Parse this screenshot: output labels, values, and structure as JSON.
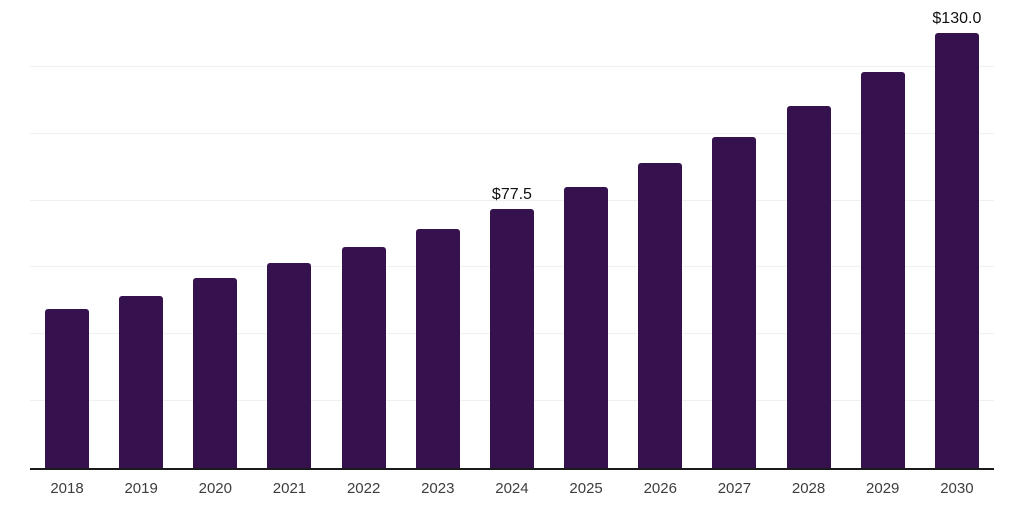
{
  "chart_data": {
    "type": "bar",
    "title": "",
    "xlabel": "",
    "ylabel": "",
    "categories": [
      "2018",
      "2019",
      "2020",
      "2021",
      "2022",
      "2023",
      "2024",
      "2025",
      "2026",
      "2027",
      "2028",
      "2029",
      "2030"
    ],
    "values": [
      47.7,
      51.4,
      56.7,
      61.3,
      66.2,
      71.4,
      77.5,
      84.0,
      91.1,
      99.1,
      108.3,
      118.6,
      130.0
    ],
    "bar_labels": [
      "",
      "",
      "",
      "",
      "",
      "",
      "$77.5",
      "",
      "",
      "",
      "",
      "",
      "$130.0"
    ],
    "ylim": [
      0,
      140
    ],
    "gridline_step": 20,
    "grid": true,
    "legend_position": "none",
    "colors": {
      "background": "#ffffff",
      "bar": "#35114E",
      "axis_line": "#1a1a1a",
      "gridline": "#f0f0f0",
      "tick_label": "#3d3d3d",
      "value_label": "#111111"
    }
  }
}
